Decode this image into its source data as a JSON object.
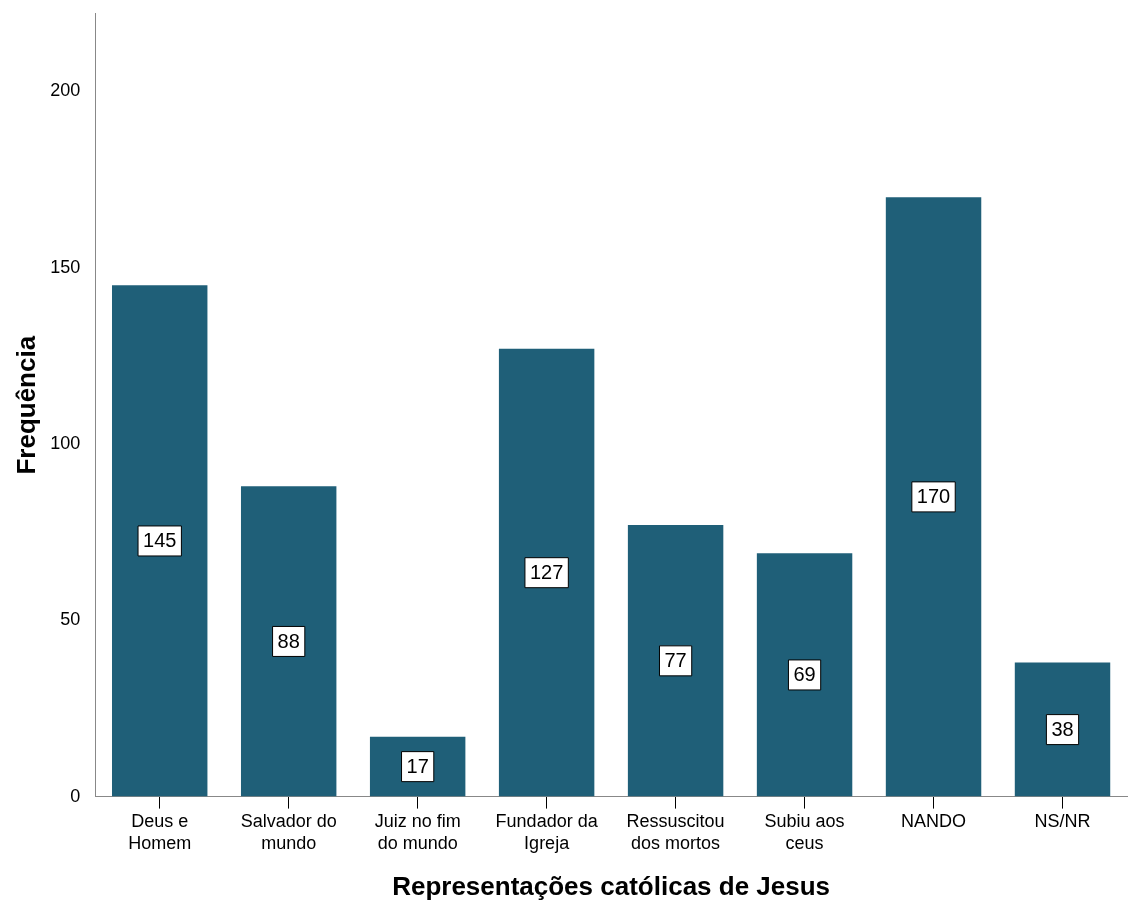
{
  "chart_data": {
    "type": "bar",
    "xlabel": "Representações católicas de Jesus",
    "ylabel": "Frequência",
    "categories": [
      "Deus e Homem",
      "Salvador do mundo",
      "Juiz no fim do mundo",
      "Fundador da Igreja",
      "Ressuscitou dos mortos",
      "Subiu aos ceus",
      "NANDO",
      "NS/NR"
    ],
    "values": [
      145,
      88,
      17,
      127,
      77,
      69,
      170,
      38
    ],
    "color": "#1f5f78",
    "ylim": [
      0,
      222
    ],
    "yticks": [
      0,
      50,
      100,
      150,
      200
    ],
    "grid": false,
    "legend": false,
    "data_labels": true
  }
}
